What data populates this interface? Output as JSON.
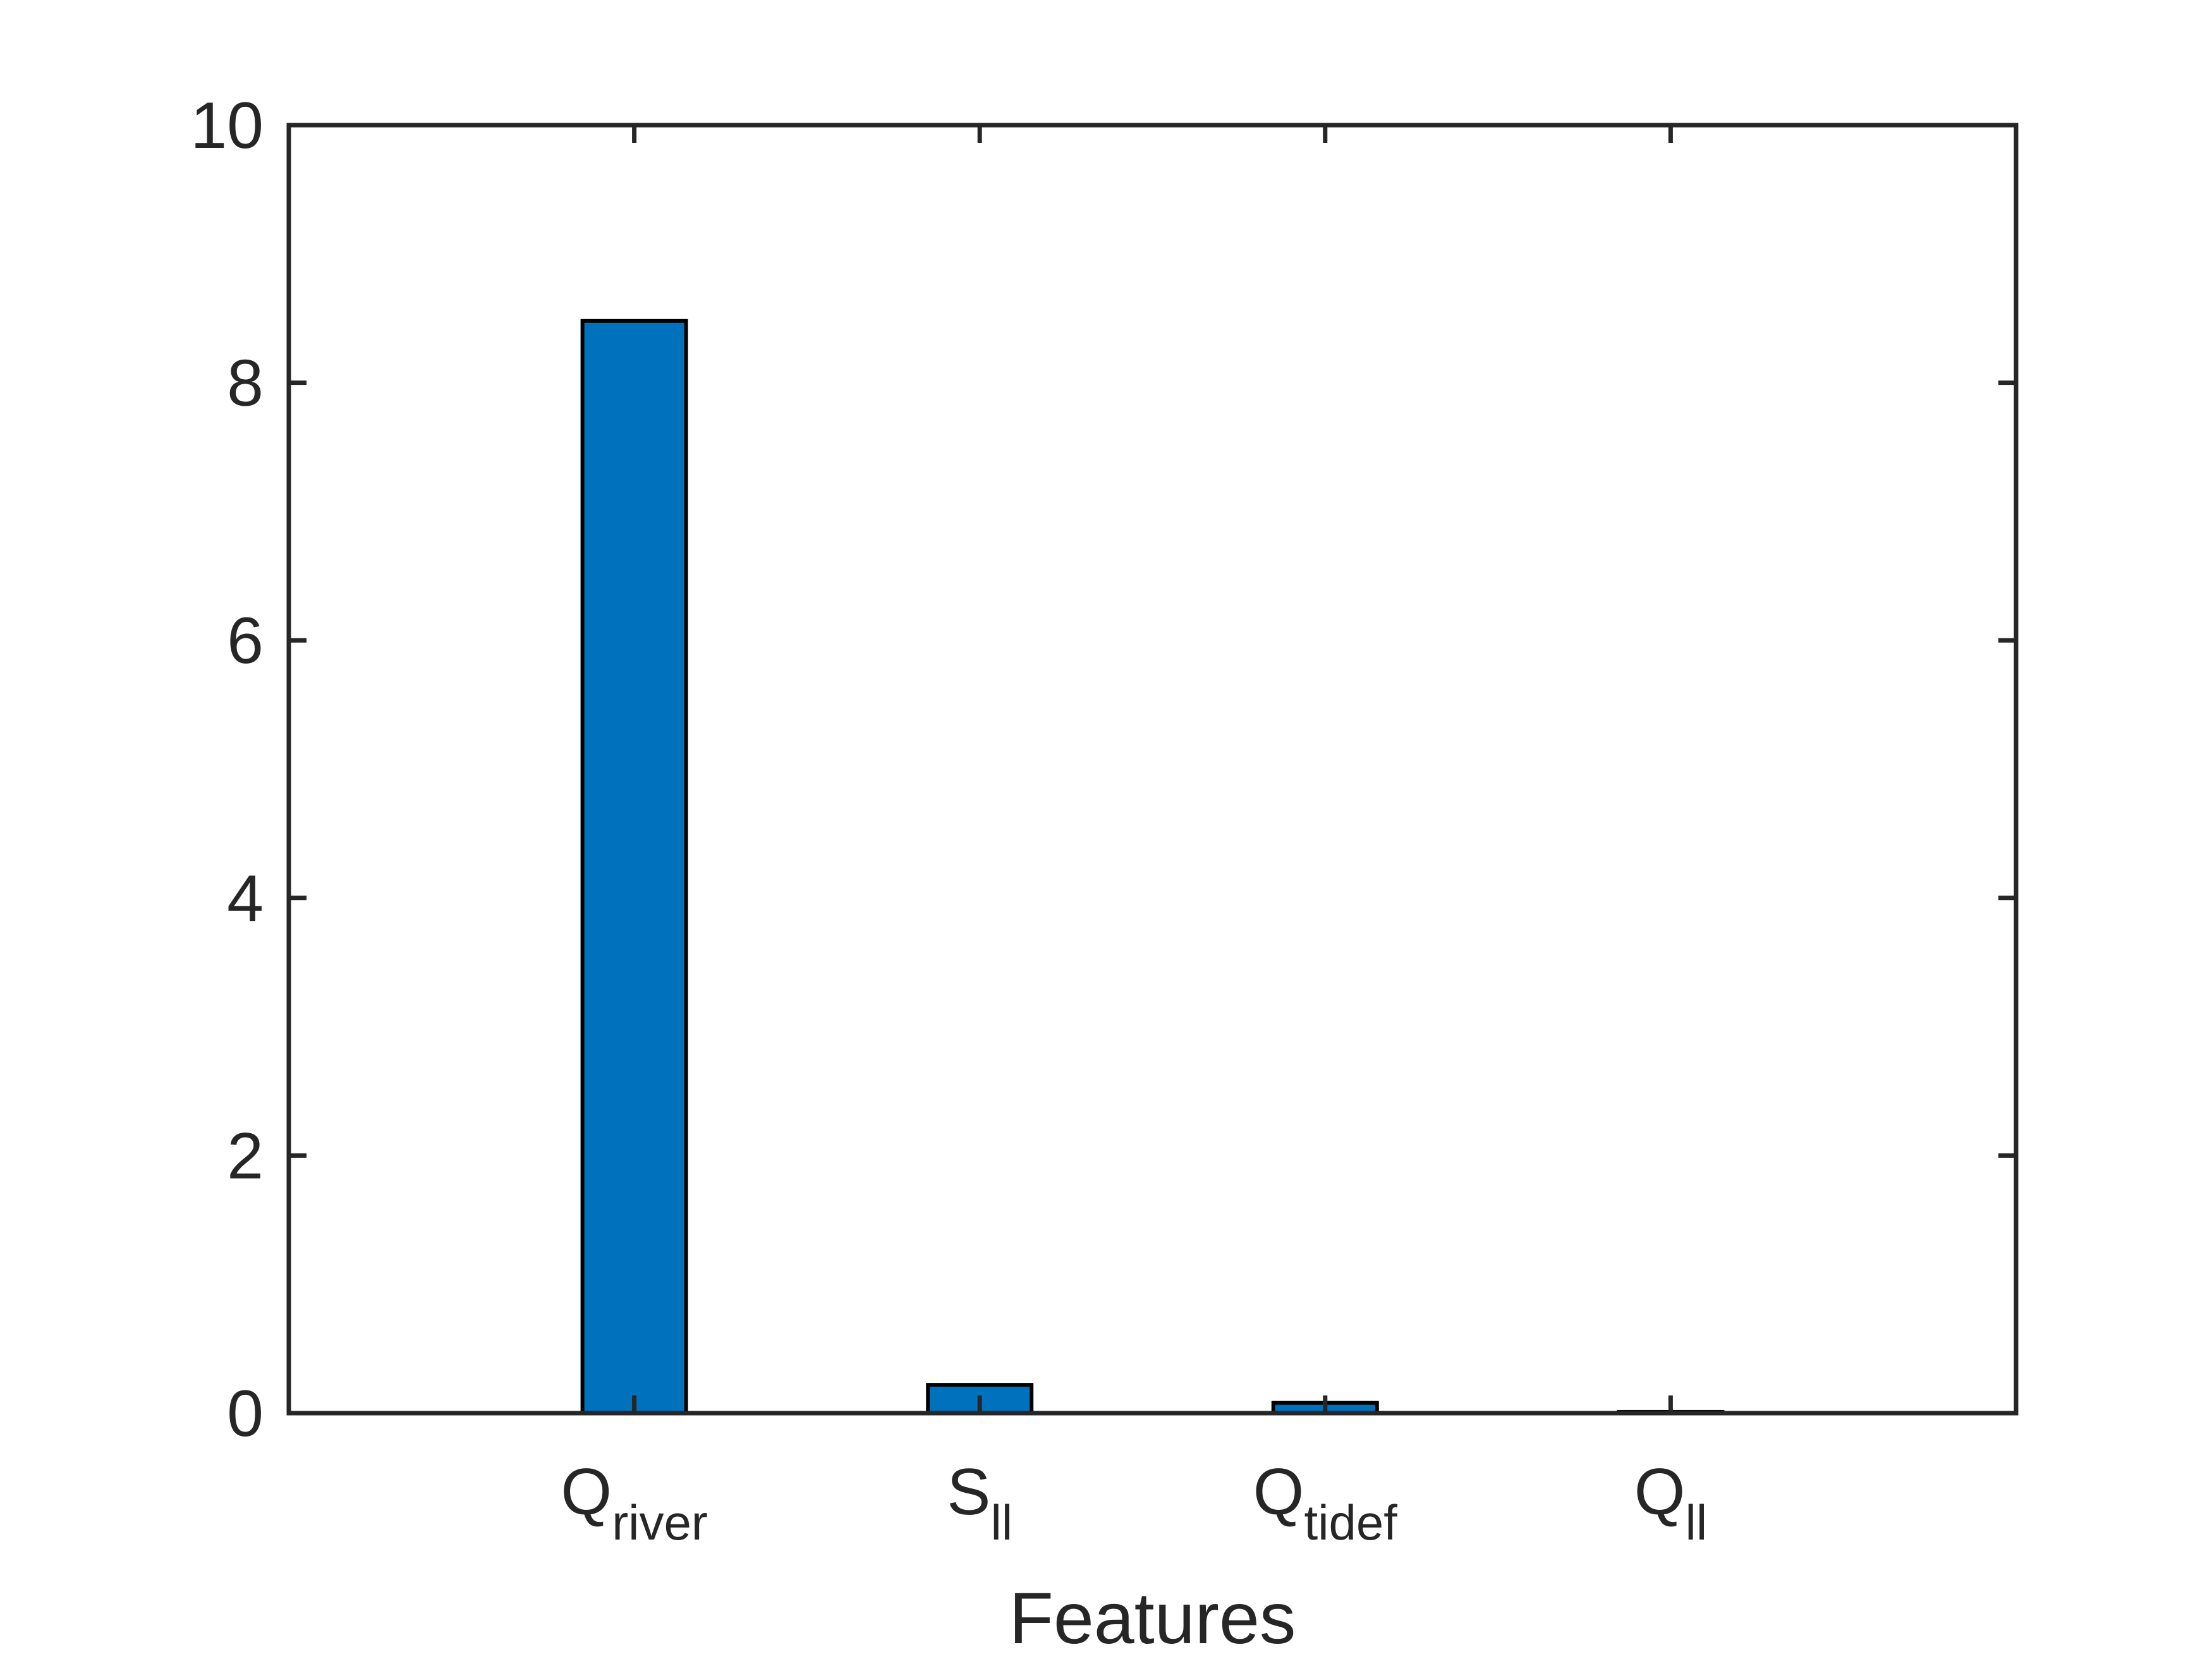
{
  "chart_data": {
    "type": "bar",
    "title": "",
    "xlabel": "Features",
    "ylabel": "",
    "categories": [
      {
        "base": "Q",
        "sub": "river"
      },
      {
        "base": "S",
        "sub": "ll"
      },
      {
        "base": "Q",
        "sub": "tidef"
      },
      {
        "base": "Q",
        "sub": "ll"
      }
    ],
    "values": [
      8.48,
      0.22,
      0.08,
      0.01
    ],
    "ylim": [
      0,
      10
    ],
    "yticks": [
      0,
      2,
      4,
      6,
      8,
      10
    ],
    "grid": false,
    "bar_color": "#0072BD",
    "bar_edge_color": "#000000",
    "axis_color": "#262626"
  }
}
